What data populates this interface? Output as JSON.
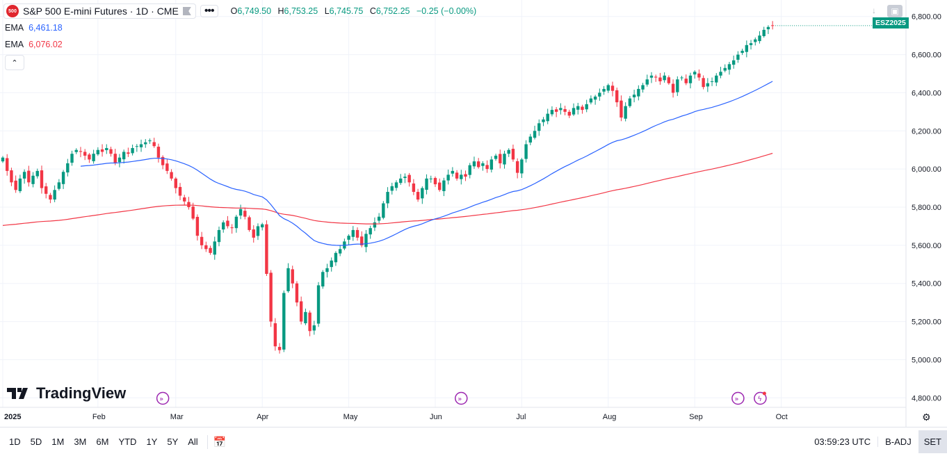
{
  "header": {
    "symbol_badge": "500",
    "title": "S&P 500 E-mini Futures · 1D · CME",
    "more_label": "•••",
    "ohlc": [
      {
        "k": "O",
        "v": "6,749.50"
      },
      {
        "k": "H",
        "v": "6,753.25"
      },
      {
        "k": "L",
        "v": "6,745.75"
      },
      {
        "k": "C",
        "v": "6,752.25"
      },
      {
        "k": "",
        "v": "−0.25 (−0.00%)"
      }
    ]
  },
  "indicators": [
    {
      "label": "EMA",
      "value": "6,461.18",
      "color": "#2962ff"
    },
    {
      "label": "EMA",
      "value": "6,076.02",
      "color": "#f23645"
    }
  ],
  "collapse_label": "⌃",
  "logo_text": "TradingView",
  "price_tag": "ESZ2025",
  "timeframes": [
    "1D",
    "5D",
    "1M",
    "3M",
    "6M",
    "YTD",
    "1Y",
    "5Y",
    "All"
  ],
  "status": {
    "clock": "03:59:23 UTC",
    "adj": "B-ADJ",
    "session": "SET"
  },
  "colors": {
    "up": "#089981",
    "down": "#f23645",
    "ema_fast": "#2962ff",
    "ema_slow": "#f23645",
    "event": "#9c27b0"
  },
  "chart_data": {
    "type": "candlestick",
    "title": "S&P 500 E-mini Futures · 1D · CME",
    "ylim": [
      4750,
      6850
    ],
    "y_ticks": [
      4800,
      5000,
      5200,
      5400,
      5600,
      5800,
      6000,
      6200,
      6400,
      6600,
      6800
    ],
    "y_tick_labels": [
      "4,800.00",
      "5,000.00",
      "5,200.00",
      "5,400.00",
      "5,600.00",
      "5,800.00",
      "6,000.00",
      "6,200.00",
      "6,400.00",
      "6,600.00",
      "6,800.00"
    ],
    "x_ticks": [
      0,
      22,
      40,
      60,
      80,
      100,
      120,
      140,
      160,
      180
    ],
    "x_tick_labels": [
      "2025",
      "Feb",
      "Mar",
      "Apr",
      "May",
      "Jun",
      "Jul",
      "Aug",
      "Sep",
      "Oct"
    ],
    "x_range": [
      0,
      191
    ],
    "closes": [
      6060,
      5990,
      5930,
      5890,
      5950,
      5985,
      5930,
      5965,
      5990,
      5900,
      5870,
      5840,
      5890,
      5930,
      5985,
      6030,
      6080,
      6100,
      6090,
      6070,
      6050,
      6080,
      6100,
      6090,
      6110,
      6080,
      6030,
      6060,
      6090,
      6080,
      6110,
      6120,
      6130,
      6140,
      6150,
      6120,
      6060,
      6020,
      5990,
      5950,
      5900,
      5860,
      5830,
      5800,
      5740,
      5650,
      5600,
      5580,
      5560,
      5620,
      5680,
      5720,
      5700,
      5690,
      5750,
      5790,
      5750,
      5680,
      5640,
      5700,
      5710,
      5450,
      5200,
      5070,
      5050,
      5350,
      5480,
      5400,
      5300,
      5200,
      5250,
      5150,
      5180,
      5390,
      5460,
      5480,
      5520,
      5560,
      5580,
      5620,
      5650,
      5680,
      5640,
      5600,
      5660,
      5690,
      5720,
      5750,
      5820,
      5880,
      5910,
      5930,
      5950,
      5960,
      5930,
      5880,
      5840,
      5900,
      5950,
      5950,
      5920,
      5890,
      5940,
      5970,
      5990,
      5950,
      5970,
      5960,
      6020,
      6040,
      6010,
      6030,
      6000,
      6050,
      6070,
      6030,
      6080,
      6100,
      6050,
      5980,
      6050,
      6130,
      6170,
      6200,
      6240,
      6260,
      6290,
      6310,
      6300,
      6320,
      6300,
      6280,
      6320,
      6330,
      6310,
      6340,
      6370,
      6380,
      6400,
      6420,
      6440,
      6410,
      6350,
      6270,
      6330,
      6370,
      6390,
      6420,
      6440,
      6470,
      6490,
      6480,
      6460,
      6490,
      6450,
      6400,
      6470,
      6480,
      6450,
      6490,
      6510,
      6480,
      6430,
      6450,
      6460,
      6490,
      6510,
      6530,
      6550,
      6570,
      6600,
      6620,
      6650,
      6660,
      6680,
      6700,
      6730,
      6745,
      6752
    ],
    "ohlc_current": {
      "open": "6,749.50",
      "high": "6,753.25",
      "low": "6,745.75",
      "close": "6,752.25",
      "change": "−0.25 (−0.00%)"
    },
    "series": [
      {
        "name": "EMA fast",
        "last_value": 6461.18,
        "color": "#2962ff"
      },
      {
        "name": "EMA slow",
        "last_value": 6076.02,
        "color": "#f23645"
      }
    ],
    "events_at_index": [
      37,
      106,
      170
    ]
  }
}
